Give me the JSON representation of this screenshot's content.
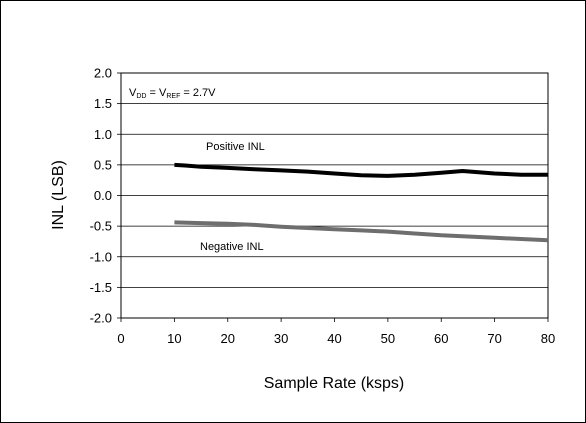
{
  "chart_data": {
    "type": "line",
    "xlabel": "Sample Rate (ksps)",
    "ylabel": "INL (LSB)",
    "xlim": [
      0,
      80
    ],
    "ylim": [
      -2.0,
      2.0
    ],
    "x_ticks": [
      "0",
      "10",
      "20",
      "30",
      "40",
      "50",
      "60",
      "70",
      "80"
    ],
    "y_ticks": [
      "2.0",
      "1.5",
      "1.0",
      "0.5",
      "0.0",
      "-0.5",
      "-1.0",
      "-1.5",
      "-2.0"
    ],
    "grid": "horizontal",
    "condition": {
      "v1": "V",
      "v1_sub": "DD",
      "eq1": " = V",
      "v2_sub": "REF",
      "eq2": " = 2.7V"
    },
    "series": [
      {
        "name": "Positive INL",
        "color": "#000000",
        "x": [
          10,
          12,
          15,
          20,
          25,
          30,
          35,
          40,
          45,
          50,
          55,
          60,
          64,
          67,
          70,
          75,
          80
        ],
        "y": [
          0.5,
          0.49,
          0.47,
          0.45,
          0.43,
          0.41,
          0.39,
          0.36,
          0.33,
          0.32,
          0.34,
          0.37,
          0.4,
          0.38,
          0.36,
          0.34,
          0.34
        ]
      },
      {
        "name": "Negative INL",
        "color": "#6e6e6e",
        "x": [
          10,
          15,
          20,
          25,
          30,
          35,
          40,
          45,
          50,
          55,
          60,
          65,
          70,
          75,
          80
        ],
        "y": [
          -0.44,
          -0.45,
          -0.46,
          -0.48,
          -0.51,
          -0.53,
          -0.55,
          -0.57,
          -0.59,
          -0.62,
          -0.65,
          -0.67,
          -0.69,
          -0.71,
          -0.73
        ]
      }
    ]
  }
}
